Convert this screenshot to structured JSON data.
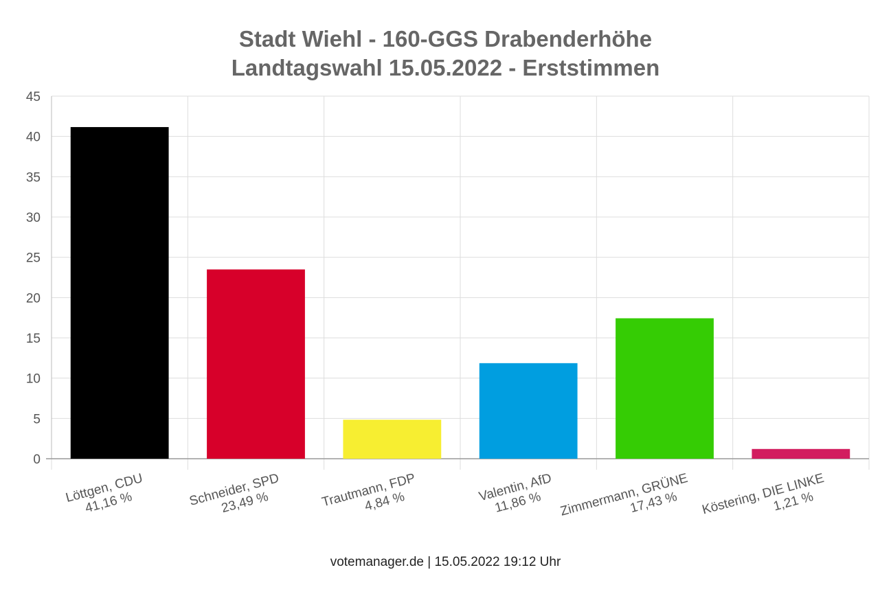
{
  "chart_data": {
    "type": "bar",
    "title_lines": [
      "Stadt Wiehl - 160-GGS Drabenderhöhe",
      "Landtagswahl 15.05.2022  - Erststimmen"
    ],
    "categories": [
      [
        "Löttgen, CDU",
        "41,16 %"
      ],
      [
        "Schneider, SPD",
        "23,49 %"
      ],
      [
        "Trautmann, FDP",
        "4,84 %"
      ],
      [
        "Valentin, AfD",
        "11,86 %"
      ],
      [
        "Zimmermann, GRÜNE",
        "17,43 %"
      ],
      [
        "Köstering, DIE LINKE",
        "1,21 %"
      ]
    ],
    "values": [
      41.16,
      23.49,
      4.84,
      11.86,
      17.43,
      1.21
    ],
    "colors": [
      "#000000",
      "#d7002a",
      "#f7ee31",
      "#009ee0",
      "#35cc04",
      "#d21d5f"
    ],
    "ylim": [
      0,
      45
    ],
    "yticks": [
      0,
      5,
      10,
      15,
      20,
      25,
      30,
      35,
      40,
      45
    ],
    "grid": true,
    "xlabel": "",
    "ylabel": ""
  },
  "footer": "votemanager.de | 15.05.2022 19:12 Uhr"
}
